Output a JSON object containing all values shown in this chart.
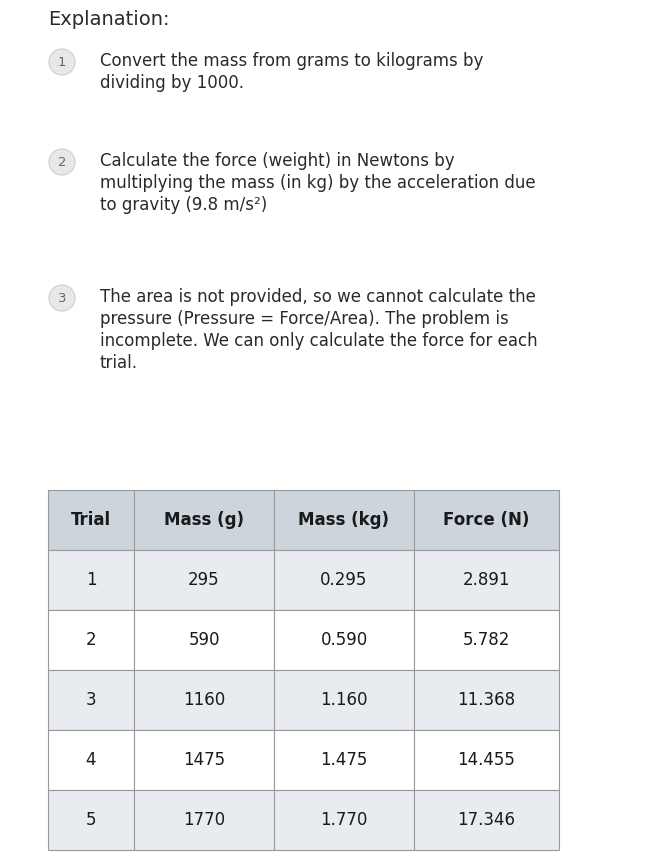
{
  "title": "Explanation:",
  "title_fontsize": 14,
  "title_color": "#2a2a2a",
  "background_color": "#ffffff",
  "steps": [
    {
      "number": "1",
      "text": "Convert the mass from grams to kilograms by dividing by 1000."
    },
    {
      "number": "2",
      "text": "Calculate the force (weight) in Newtons by multiplying the mass (in kg) by the acceleration due to gravity (9.8 m/s²)"
    },
    {
      "number": "3",
      "text": "The area is not provided, so we cannot calculate the pressure (Pressure = Force/Area). The problem is incomplete. We can only calculate the force for each trial."
    }
  ],
  "circle_color": "#e8e8e8",
  "circle_edge_color": "#cccccc",
  "circle_text_color": "#666666",
  "step_text_color": "#2a2a2a",
  "step_fontsize": 12,
  "table_headers": [
    "Trial",
    "Mass (g)",
    "Mass (kg)",
    "Force (N)"
  ],
  "table_rows": [
    [
      "1",
      "295",
      "0.295",
      "2.891"
    ],
    [
      "2",
      "590",
      "0.590",
      "5.782"
    ],
    [
      "3",
      "1160",
      "1.160",
      "11.368"
    ],
    [
      "4",
      "1475",
      "1.475",
      "14.455"
    ],
    [
      "5",
      "1770",
      "1.770",
      "17.346"
    ]
  ],
  "table_header_bg": "#ccd4dc",
  "table_row_bg_odd": "#e8ecf0",
  "table_row_bg_even": "#ffffff",
  "table_border_color": "#999999",
  "table_text_color": "#1a1a1a",
  "table_header_fontsize": 12,
  "table_data_fontsize": 12
}
